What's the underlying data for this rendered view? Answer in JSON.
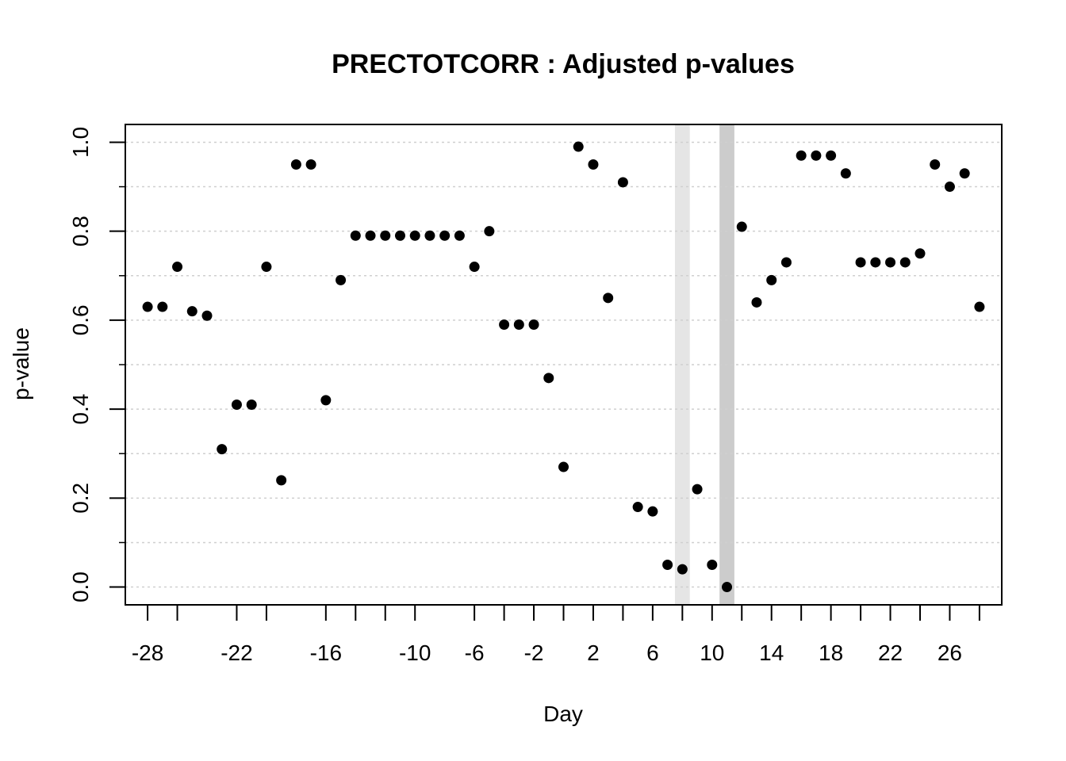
{
  "chart_data": {
    "type": "scatter",
    "title": "PRECTOTCORR : Adjusted p-values",
    "xlabel": "Day",
    "ylabel": "p-value",
    "xlim": [
      -29.5,
      29.5
    ],
    "ylim": [
      -0.04,
      1.04
    ],
    "x_tick_labels": [
      -28,
      -22,
      -16,
      -10,
      -6,
      -2,
      2,
      6,
      10,
      14,
      18,
      22,
      26
    ],
    "x_minor_ticks": [
      -28,
      -26,
      -22,
      -20,
      -16,
      -14,
      -12,
      -10,
      -6,
      -4,
      -2,
      0,
      2,
      4,
      6,
      8,
      10,
      12,
      14,
      16,
      18,
      20,
      22,
      24,
      26,
      28
    ],
    "y_ticks": [
      0.0,
      0.2,
      0.4,
      0.6,
      0.8,
      1.0
    ],
    "y_tick_labels": [
      "0.0",
      "0.2",
      "0.4",
      "0.6",
      "0.8",
      "1.0"
    ],
    "y_grid": [
      0.0,
      0.1,
      0.2,
      0.3,
      0.4,
      0.5,
      0.6,
      0.7,
      0.8,
      0.9,
      1.0
    ],
    "y_minor_ticks": [
      0.1,
      0.3,
      0.5,
      0.7,
      0.9
    ],
    "grid": "horizontal dotted",
    "highlight_bands": [
      {
        "from": 7.5,
        "to": 8.5,
        "color": "#e5e5e5"
      },
      {
        "from": 10.5,
        "to": 11.5,
        "color": "#cccccc"
      }
    ],
    "point_color": "#000000",
    "x": [
      -28,
      -27,
      -26,
      -25,
      -24,
      -23,
      -22,
      -21,
      -20,
      -19,
      -18,
      -17,
      -16,
      -15,
      -14,
      -13,
      -12,
      -11,
      -10,
      -9,
      -8,
      -7,
      -6,
      -5,
      -4,
      -3,
      -2,
      -1,
      0,
      1,
      2,
      3,
      4,
      5,
      6,
      7,
      8,
      9,
      10,
      11,
      12,
      13,
      14,
      15,
      16,
      17,
      18,
      19,
      20,
      21,
      22,
      23,
      24,
      25,
      26,
      27,
      28
    ],
    "y": [
      0.63,
      0.63,
      0.72,
      0.62,
      0.61,
      0.31,
      0.41,
      0.41,
      0.72,
      0.24,
      0.95,
      0.95,
      0.42,
      0.69,
      0.79,
      0.79,
      0.79,
      0.79,
      0.79,
      0.79,
      0.79,
      0.79,
      0.72,
      0.8,
      0.59,
      0.59,
      0.59,
      0.47,
      0.27,
      0.99,
      0.95,
      0.65,
      0.91,
      0.18,
      0.17,
      0.05,
      0.04,
      0.22,
      0.05,
      0.0,
      0.81,
      0.64,
      0.69,
      0.73,
      0.97,
      0.97,
      0.97,
      0.93,
      0.73,
      0.73,
      0.73,
      0.73,
      0.75,
      0.95,
      0.9,
      0.93,
      0.63
    ]
  }
}
